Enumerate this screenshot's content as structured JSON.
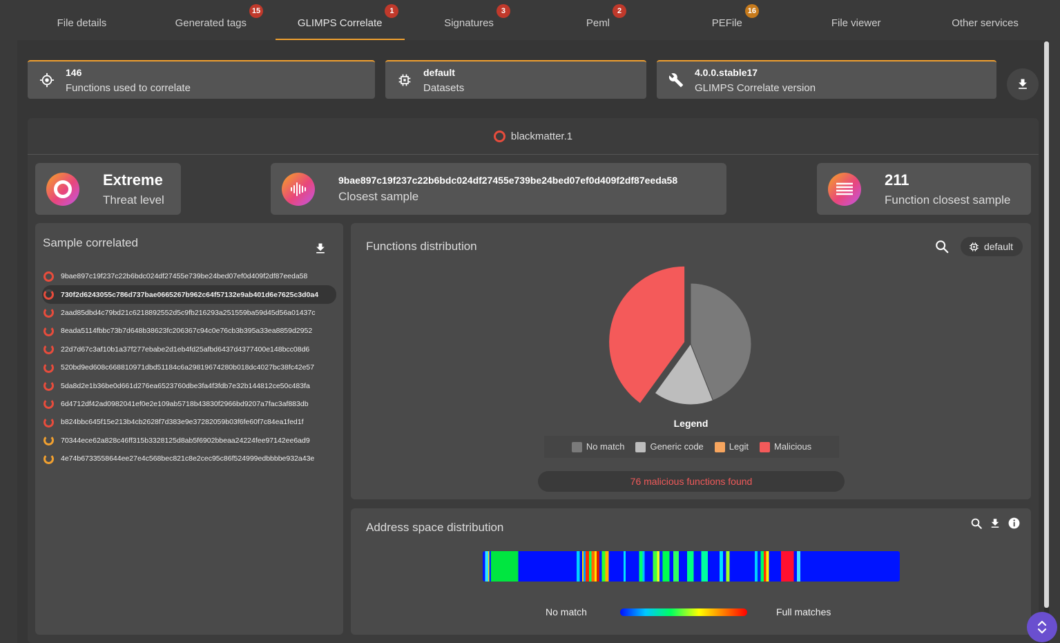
{
  "tabs": [
    {
      "label": "File details",
      "badge": ""
    },
    {
      "label": "Generated tags",
      "badge": "15"
    },
    {
      "label": "GLIMPS Correlate",
      "badge": "1"
    },
    {
      "label": "Signatures",
      "badge": "3"
    },
    {
      "label": "Peml",
      "badge": "2"
    },
    {
      "label": "PEFile",
      "badge": "16"
    },
    {
      "label": "File viewer",
      "badge": ""
    },
    {
      "label": "Other services",
      "badge": ""
    }
  ],
  "info": {
    "functions": {
      "value": "146",
      "label": "Functions used to correlate"
    },
    "datasets": {
      "value": "default",
      "label": "Datasets"
    },
    "version": {
      "value": "4.0.0.stable17",
      "label": "GLIMPS Correlate version"
    }
  },
  "panel_title": "blackmatter.1",
  "stats": {
    "threat": {
      "value": "Extreme",
      "label": "Threat level"
    },
    "closest": {
      "value": "9bae897c19f237c22b6bdc024df27455e739be24bed07ef0d409f2df87eeda58",
      "label": "Closest sample"
    },
    "functions_closest": {
      "value": "211",
      "label": "Function closest sample"
    }
  },
  "samples": {
    "title": "Sample correlated",
    "items": [
      "9bae897c19f237c22b6bdc024df27455e739be24bed07ef0d409f2df87eeda58",
      "730f2d6243055c786d737bae0665267b962c64f57132e9ab401d6e7625c3d0a4",
      "2aad85dbd4c79bd21c6218892552d5c9fb216293a251559ba59d45d56a01437c",
      "8eada5114fbbc73b7d648b38623fc206367c94c0e76cb3b395a33ea8859d2952",
      "22d7d67c3af10b1a37f277ebabe2d1eb4fd25afbd6437d4377400e148bcc08d6",
      "520bd9ed608c668810971dbd51184c6a29819674280b018dc4027bc38fc42e57",
      "5da8d2e1b36be0d661d276ea6523760dbe3fa4f3fdb7e32b144812ce50c483fa",
      "6d4712df42ad0982041ef0e2e109ab5718b43830f2966bd9207a7fac3af883db",
      "b824bbc645f15e213b4cb2628f7d383e9e37282059b03f6fe60f7c84ea1fed1f",
      "70344ece62a828c46ff315b3328125d8ab5f6902bbeaa24224fee97142ee6ad9",
      "4e74b6733558644ee27e4c568bec821c8e2cec95c86f524999edbbbbe932a43e"
    ]
  },
  "functions_distribution": {
    "title": "Functions distribution",
    "dataset_chip": "default",
    "legend_title": "Legend",
    "legend": [
      {
        "name": "No match",
        "color": "#7a7a7a"
      },
      {
        "name": "Generic code",
        "color": "#bdbdbd"
      },
      {
        "name": "Legit",
        "color": "#f7a55e"
      },
      {
        "name": "Malicious",
        "color": "#f45a5a"
      }
    ],
    "malicious_text": "76 malicious functions found"
  },
  "chart_data": {
    "type": "pie",
    "categories": [
      "No match",
      "Generic code",
      "Malicious"
    ],
    "values": [
      44,
      16,
      40
    ],
    "colors": [
      "#7a7a7a",
      "#bdbdbd",
      "#f45a5a"
    ]
  },
  "address_space": {
    "title": "Address space distribution",
    "left_label": "No match",
    "right_label": "Full matches"
  }
}
